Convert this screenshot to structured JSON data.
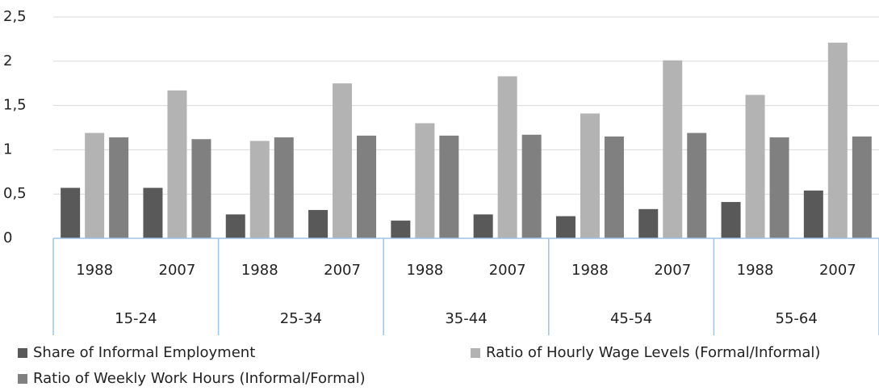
{
  "chart_data": {
    "type": "bar",
    "categories": [
      "1988",
      "2007",
      "1988",
      "2007",
      "1988",
      "2007",
      "1988",
      "2007",
      "1988",
      "2007"
    ],
    "groups": [
      "15-24",
      "25-34",
      "35-44",
      "45-54",
      "55-64"
    ],
    "series": [
      {
        "name": "Share of Informal Employment",
        "color": "#595959",
        "values": [
          0.57,
          0.57,
          0.27,
          0.32,
          0.2,
          0.27,
          0.25,
          0.33,
          0.41,
          0.54
        ]
      },
      {
        "name": "Ratio of Hourly Wage Levels (Formal/Informal)",
        "color": "#b3b3b3",
        "values": [
          1.19,
          1.67,
          1.1,
          1.75,
          1.3,
          1.83,
          1.41,
          2.01,
          1.62,
          2.21
        ]
      },
      {
        "name": "Ratio of Weekly Work Hours (Informal/Formal)",
        "color": "#808080",
        "values": [
          1.14,
          1.12,
          1.14,
          1.16,
          1.16,
          1.17,
          1.15,
          1.19,
          1.14,
          1.15
        ]
      }
    ],
    "ylim": [
      0,
      2.5
    ],
    "yticks": [
      0,
      {
        "value": 0.5,
        "label": "0,5"
      },
      1,
      {
        "value": 1.5,
        "label": "1,5"
      },
      2,
      {
        "value": 2.5,
        "label": "2,5"
      }
    ],
    "grid": true
  }
}
